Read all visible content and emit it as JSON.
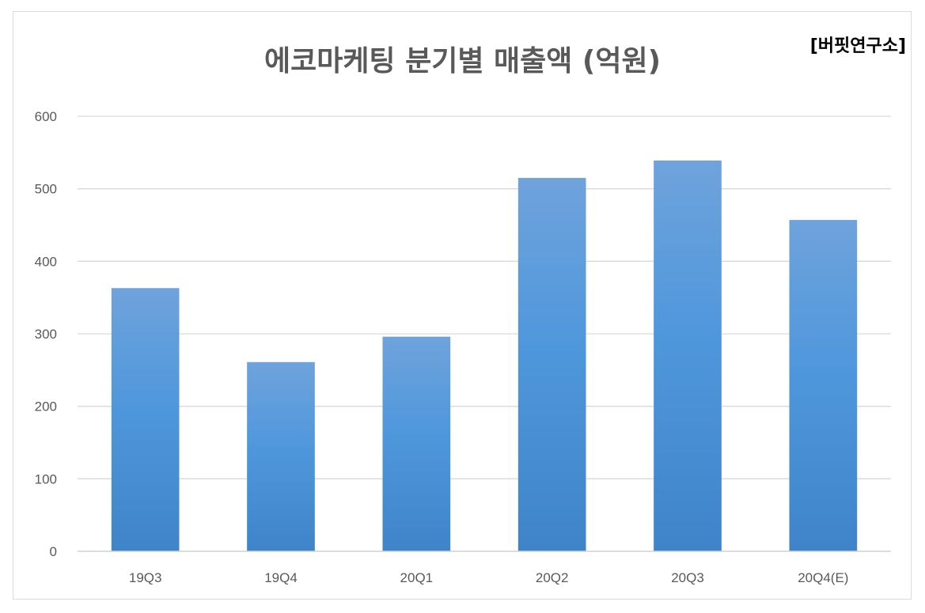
{
  "chart_data": {
    "type": "bar",
    "title": "에코마케팅 분기별 매출액 (억원)",
    "source": "[버핏연구소]",
    "categories": [
      "19Q3",
      "19Q4",
      "20Q1",
      "20Q2",
      "20Q3",
      "20Q4(E)"
    ],
    "series": [
      {
        "values": [
          363,
          261,
          296,
          515,
          539,
          457
        ]
      }
    ],
    "ylim": [
      0,
      600
    ],
    "yticks": [
      0,
      100,
      200,
      300,
      400,
      500,
      600
    ],
    "grid": true,
    "legend": "none",
    "colors": {
      "bar_top": "#6fa3dc",
      "bar_mid": "#4f97dc",
      "bar_bottom": "#3f84c8",
      "grid": "#d9d9d9",
      "axis": "#d0d0d0",
      "text": "#595959"
    }
  }
}
